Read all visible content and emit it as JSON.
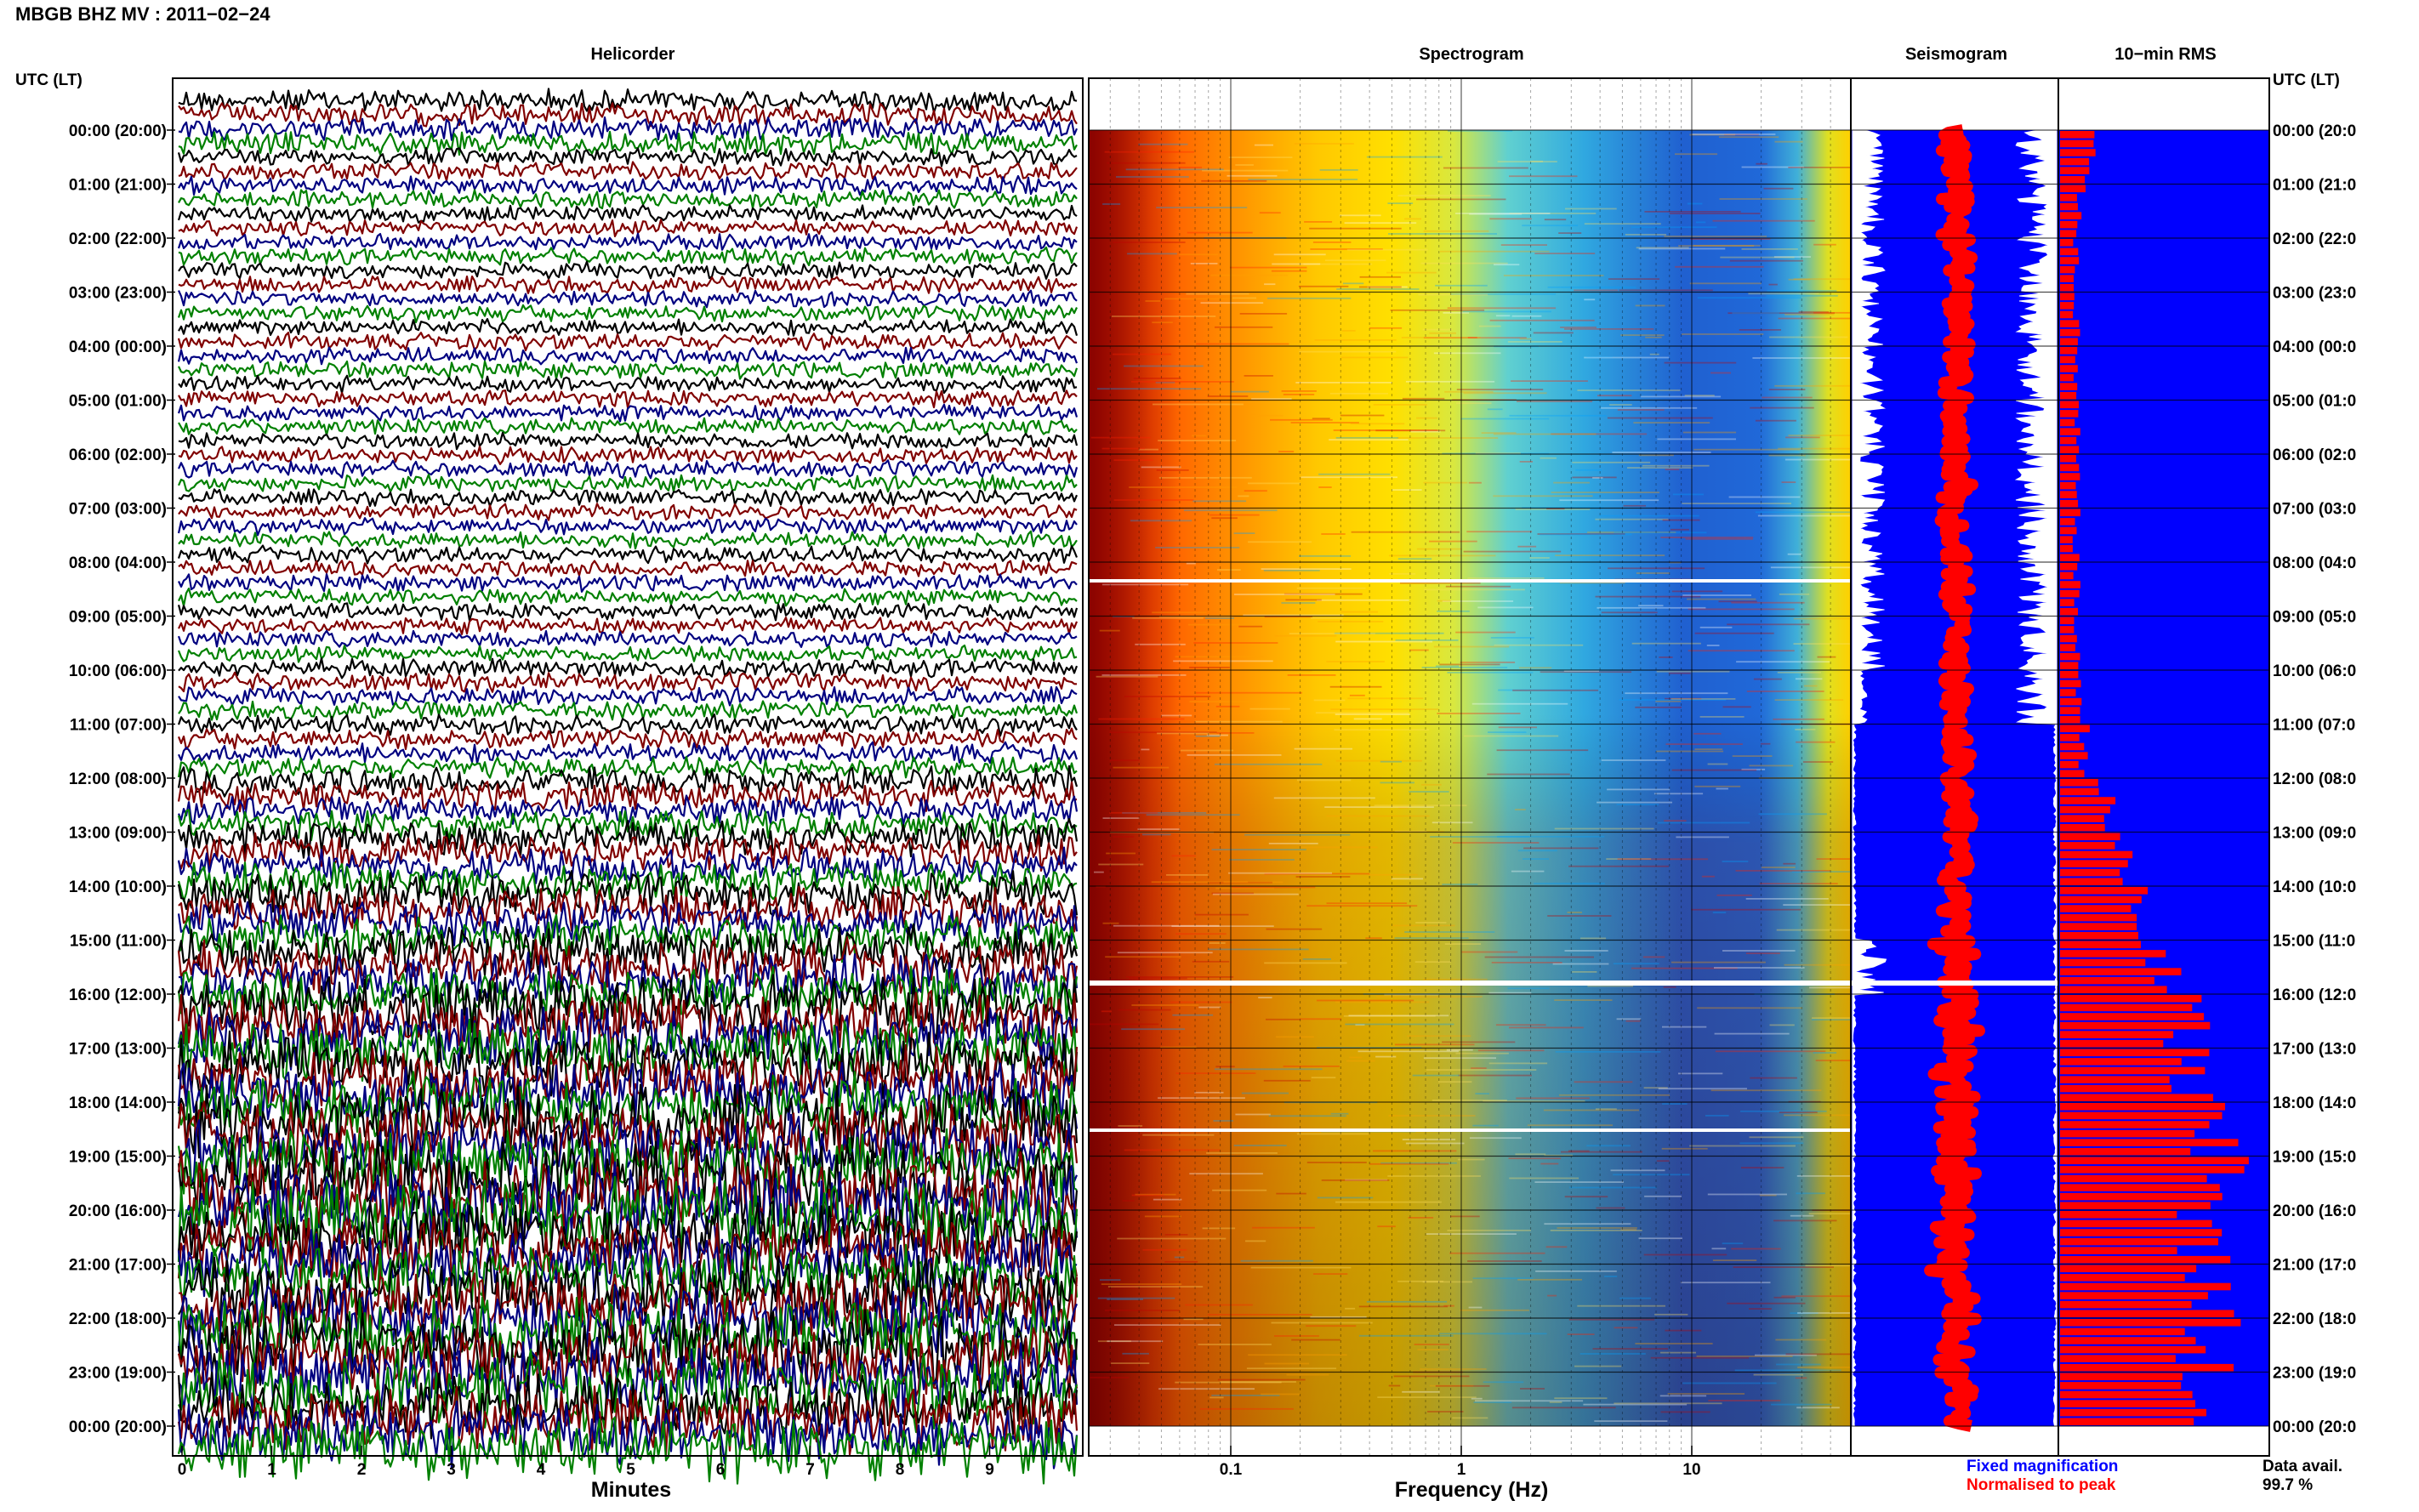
{
  "header": {
    "title": "MBGB BHZ MV : 2011−02−24"
  },
  "panels": {
    "helicorder_title": "Helicorder",
    "spectrogram_title": "Spectrogram",
    "seismogram_title": "Seismogram",
    "rms_title": "10−min RMS"
  },
  "time_axis": {
    "left_label": "UTC (LT)",
    "right_label": "UTC (LT)",
    "left_ticks": [
      "00:00 (20:00)",
      "01:00 (21:00)",
      "02:00 (22:00)",
      "03:00 (23:00)",
      "04:00 (00:00)",
      "05:00 (01:00)",
      "06:00 (02:00)",
      "07:00 (03:00)",
      "08:00 (04:00)",
      "09:00 (05:00)",
      "10:00 (06:00)",
      "11:00 (07:00)",
      "12:00 (08:00)",
      "13:00 (09:00)",
      "14:00 (10:00)",
      "15:00 (11:00)",
      "16:00 (12:00)",
      "17:00 (13:00)",
      "18:00 (14:00)",
      "19:00 (15:00)",
      "20:00 (16:00)",
      "21:00 (17:00)",
      "22:00 (18:00)",
      "23:00 (19:00)",
      "00:00 (20:00)"
    ],
    "right_ticks": [
      "00:00 (20:0",
      "01:00 (21:0",
      "02:00 (22:0",
      "03:00 (23:0",
      "04:00 (00:0",
      "05:00 (01:0",
      "06:00 (02:0",
      "07:00 (03:0",
      "08:00 (04:0",
      "09:00 (05:0",
      "10:00 (06:0",
      "11:00 (07:0",
      "12:00 (08:0",
      "13:00 (09:0",
      "14:00 (10:0",
      "15:00 (11:0",
      "16:00 (12:0",
      "17:00 (13:0",
      "18:00 (14:0",
      "19:00 (15:0",
      "20:00 (16:0",
      "21:00 (17:0",
      "22:00 (18:0",
      "23:00 (19:0",
      "00:00 (20:0"
    ]
  },
  "helicorder_axis": {
    "xlabel": "Minutes",
    "ticks": [
      "0",
      "1",
      "2",
      "3",
      "4",
      "5",
      "6",
      "7",
      "8",
      "9"
    ]
  },
  "spectrogram_axis": {
    "xlabel": "Frequency (Hz)",
    "ticks": [
      "0.1",
      "1",
      "10"
    ]
  },
  "legend": {
    "fixed": "Fixed magnification",
    "normalised": "Normalised to peak",
    "fixed_color": "#0000ff",
    "normalised_color": "#ff0000",
    "availability_label": "Data avail.",
    "availability_value": "99.7 %"
  },
  "colors": {
    "seismogram_bg": "#0000ff",
    "rms_bar": "#ff0000",
    "trace_colors": [
      "#000000",
      "#800000",
      "#000080",
      "#008000"
    ]
  },
  "chart_data": {
    "type": "bar",
    "title": "10−min RMS",
    "time_ticks": [
      "00:00",
      "01:00",
      "02:00",
      "03:00",
      "04:00",
      "05:00",
      "06:00",
      "07:00",
      "08:00",
      "09:00",
      "10:00",
      "11:00",
      "12:00",
      "13:00",
      "14:00",
      "15:00",
      "16:00",
      "17:00",
      "18:00",
      "19:00",
      "20:00",
      "21:00",
      "22:00",
      "23:00",
      "00:00"
    ],
    "hourly_relative_rms": [
      0.15,
      0.1,
      0.08,
      0.08,
      0.08,
      0.08,
      0.08,
      0.08,
      0.08,
      0.08,
      0.1,
      0.12,
      0.22,
      0.3,
      0.38,
      0.48,
      0.62,
      0.62,
      0.7,
      0.85,
      0.68,
      0.7,
      0.75,
      0.6
    ],
    "data_availability_percent": 99.7
  }
}
